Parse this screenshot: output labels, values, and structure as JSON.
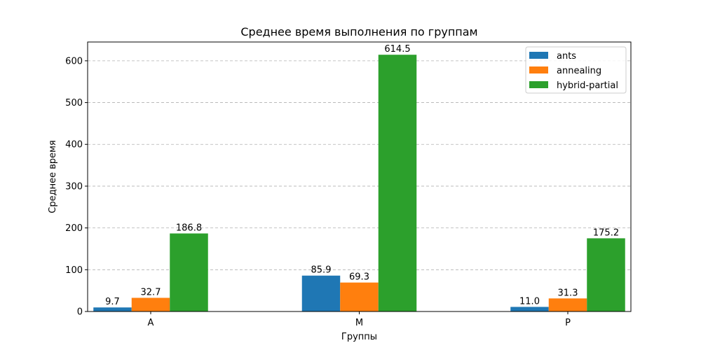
{
  "chart_data": {
    "type": "bar",
    "title": "Среднее время выполнения по группам",
    "xlabel": "Группы",
    "ylabel": "Среднее время",
    "categories": [
      "A",
      "M",
      "P"
    ],
    "series": [
      {
        "name": "ants",
        "values": [
          9.7,
          85.9,
          11.0
        ],
        "color": "#1f77b4"
      },
      {
        "name": "annealing",
        "values": [
          32.7,
          69.3,
          31.3
        ],
        "color": "#ff7f0e"
      },
      {
        "name": "hybrid-partial",
        "values": [
          186.8,
          614.5,
          175.2
        ],
        "color": "#2ca02c"
      }
    ],
    "ylim": [
      0,
      645
    ],
    "yticks": [
      0,
      100,
      200,
      300,
      400,
      500,
      600
    ],
    "grid": "y-dashed",
    "legend": "top-right"
  }
}
